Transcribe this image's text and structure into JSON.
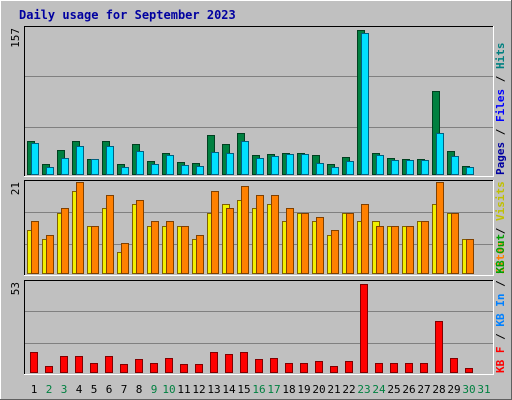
{
  "chart_data": [
    {
      "type": "bar",
      "title": "Daily usage for September 2023",
      "ylabel_parts": [
        "Pages",
        "Files",
        "Hits"
      ],
      "ymax_label": "157",
      "ylim": [
        0,
        157
      ],
      "categories": [
        "1",
        "2",
        "3",
        "4",
        "5",
        "6",
        "7",
        "8",
        "9",
        "10",
        "11",
        "12",
        "13",
        "14",
        "15",
        "16",
        "17",
        "18",
        "19",
        "20",
        "21",
        "22",
        "23",
        "24",
        "25",
        "26",
        "27",
        "28",
        "29",
        "30",
        "31"
      ],
      "weekend_days": [
        "2",
        "3",
        "9",
        "10",
        "16",
        "17",
        "23",
        "24",
        "30",
        "31"
      ],
      "series": [
        {
          "name": "Hits",
          "color": "#008040",
          "values": [
            36,
            12,
            27,
            36,
            17,
            36,
            12,
            33,
            15,
            24,
            14,
            13,
            43,
            33,
            45,
            21,
            22,
            24,
            24,
            21,
            12,
            19,
            155,
            23,
            18,
            17,
            17,
            90,
            26,
            10,
            0
          ]
        },
        {
          "name": "Files",
          "color": "#00E0FF",
          "values": [
            34,
            9,
            18,
            31,
            17,
            31,
            9,
            26,
            12,
            21,
            11,
            10,
            25,
            24,
            36,
            18,
            20,
            22,
            22,
            13,
            9,
            15,
            152,
            21,
            16,
            16,
            16,
            45,
            20,
            9,
            0
          ]
        },
        {
          "name": "Pages",
          "color": "#00C0FF",
          "values": [
            34,
            9,
            18,
            31,
            17,
            31,
            9,
            26,
            12,
            21,
            11,
            10,
            25,
            24,
            36,
            18,
            20,
            22,
            22,
            13,
            9,
            15,
            152,
            21,
            16,
            16,
            16,
            45,
            20,
            9,
            0
          ]
        }
      ]
    },
    {
      "type": "bar",
      "ylabel_parts": [
        "Sites",
        "Visits"
      ],
      "ymax_label": "21",
      "ylim": [
        0,
        21
      ],
      "series": [
        {
          "name": "Visits",
          "color": "#F0F000",
          "values": [
            10,
            8,
            14,
            19,
            11,
            15,
            5,
            16,
            11,
            11,
            11,
            8,
            14,
            16,
            17,
            15,
            16,
            12,
            14,
            12,
            9,
            14,
            12,
            12,
            11,
            11,
            12,
            16,
            14,
            8,
            0
          ]
        },
        {
          "name": "Sites",
          "color": "#FF8000",
          "values": [
            12,
            9,
            15,
            21,
            11,
            18,
            7,
            17,
            12,
            12,
            11,
            9,
            19,
            15,
            20,
            18,
            18,
            15,
            14,
            13,
            10,
            14,
            16,
            11,
            11,
            11,
            12,
            21,
            14,
            8,
            0
          ]
        }
      ]
    },
    {
      "type": "bar",
      "ylabel_parts": [
        "KB F",
        "KB In",
        "KB Out"
      ],
      "ymax_label": "53",
      "ylim": [
        0,
        53
      ],
      "series": [
        {
          "name": "KB F",
          "color": "#FF0000",
          "values": [
            12,
            4,
            10,
            10,
            6,
            10,
            5,
            8,
            6,
            9,
            5,
            5,
            12,
            11,
            12,
            8,
            9,
            6,
            6,
            7,
            4,
            7,
            52,
            6,
            6,
            6,
            6,
            30,
            9,
            3,
            0
          ]
        }
      ]
    }
  ]
}
